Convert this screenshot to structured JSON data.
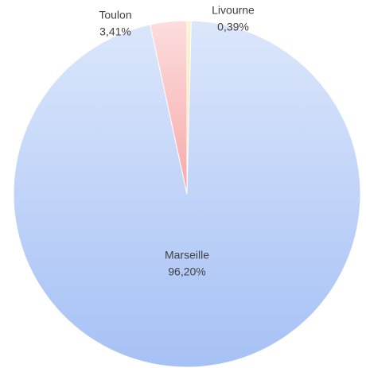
{
  "chart_data": {
    "type": "pie",
    "categories": [
      "Livourne",
      "Marseille",
      "Toulon"
    ],
    "values": [
      0.39,
      96.2,
      3.41
    ],
    "value_labels": [
      "0,39%",
      "96,20%",
      "3,41%"
    ],
    "colors": [
      "#f7e08a",
      "#a6c1f5",
      "#f7a9a9"
    ]
  }
}
